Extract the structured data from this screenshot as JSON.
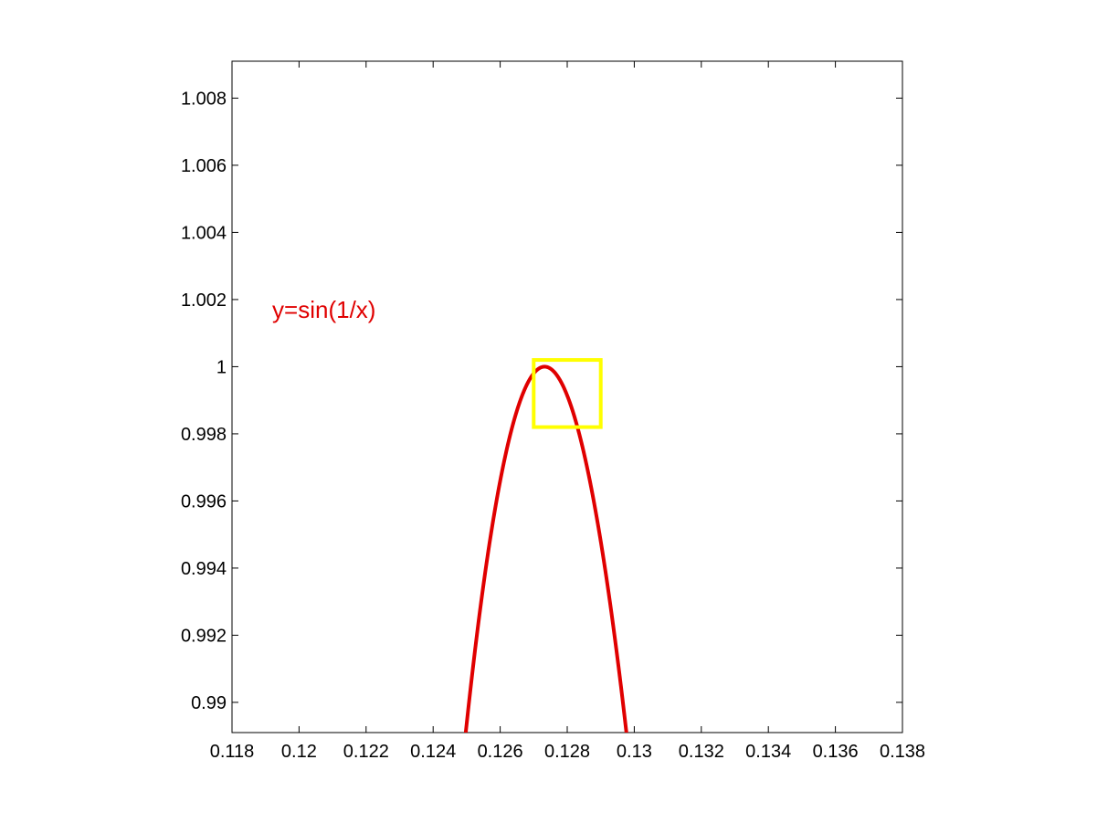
{
  "chart_data": {
    "type": "line",
    "title": "",
    "xlabel": "",
    "ylabel": "",
    "xlim": [
      0.118,
      0.138
    ],
    "ylim": [
      0.9891,
      1.0091
    ],
    "x_ticks": [
      0.118,
      0.12,
      0.122,
      0.124,
      0.126,
      0.128,
      0.13,
      0.132,
      0.134,
      0.136,
      0.138
    ],
    "x_tick_labels": [
      "0.118",
      "0.12",
      "0.122",
      "0.124",
      "0.126",
      "0.128",
      "0.13",
      "0.132",
      "0.134",
      "0.136",
      "0.138"
    ],
    "y_ticks": [
      0.99,
      0.992,
      0.994,
      0.996,
      0.998,
      1.0,
      1.002,
      1.004,
      1.006,
      1.008
    ],
    "y_tick_labels": [
      "0.99",
      "0.992",
      "0.994",
      "0.996",
      "0.998",
      "1",
      "1.002",
      "1.004",
      "1.006",
      "1.008"
    ],
    "grid": false,
    "legend": "none",
    "series": [
      {
        "function": "sin(1/x)",
        "color": "#e00000",
        "x_range": [
          0.1249,
          0.1298
        ]
      }
    ],
    "annotations": [
      {
        "text": "y=sin(1/x)",
        "x": 0.1192,
        "y": 1.0017,
        "color": "#e00000"
      }
    ],
    "highlight_box": {
      "x_range": [
        0.127,
        0.129
      ],
      "y_range": [
        0.9982,
        1.0002
      ],
      "color": "#ffff00"
    }
  }
}
